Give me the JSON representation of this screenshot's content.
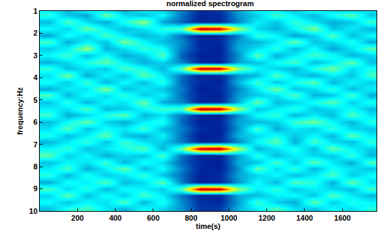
{
  "chart_data": {
    "type": "heatmap",
    "title": "normalized spectrogram",
    "x_label": "time(s)",
    "y_label": "frequency:Hz",
    "x": [
      50,
      150,
      250,
      350,
      450,
      550,
      650,
      750,
      850,
      950,
      1050,
      1150,
      1250,
      1350,
      1450,
      1550,
      1650,
      1750
    ],
    "y": [
      0.9,
      1.2,
      1.5,
      1.8,
      2.1,
      2.4,
      2.7,
      3.0,
      3.3,
      3.6,
      3.9,
      4.2,
      4.5,
      4.8,
      5.1,
      5.4,
      5.7,
      6.0,
      6.3,
      6.6,
      6.9,
      7.2,
      7.5,
      7.8,
      8.1,
      8.4,
      8.7,
      9.0,
      9.3,
      9.6,
      9.9
    ],
    "z": [
      [
        0.35,
        0.28,
        0.42,
        0.31,
        0.25,
        0.38,
        0.3,
        0.22,
        0.1,
        0.12,
        0.26,
        0.4,
        0.33,
        0.29,
        0.45,
        0.32,
        0.27,
        0.36
      ],
      [
        0.41,
        0.3,
        0.26,
        0.48,
        0.33,
        0.29,
        0.37,
        0.2,
        0.08,
        0.09,
        0.24,
        0.31,
        0.44,
        0.35,
        0.28,
        0.39,
        0.46,
        0.3
      ],
      [
        0.29,
        0.45,
        0.33,
        0.27,
        0.4,
        0.51,
        0.26,
        0.18,
        0.07,
        0.08,
        0.22,
        0.36,
        0.3,
        0.42,
        0.34,
        0.27,
        0.31,
        0.43
      ],
      [
        0.38,
        0.32,
        0.47,
        0.36,
        0.29,
        0.34,
        0.41,
        0.45,
        0.95,
        0.92,
        0.55,
        0.33,
        0.28,
        0.37,
        0.49,
        0.3,
        0.35,
        0.28
      ],
      [
        0.26,
        0.39,
        0.31,
        0.44,
        0.35,
        0.28,
        0.33,
        0.19,
        0.06,
        0.07,
        0.21,
        0.42,
        0.37,
        0.26,
        0.31,
        0.45,
        0.29,
        0.38
      ],
      [
        0.44,
        0.27,
        0.36,
        0.3,
        0.49,
        0.37,
        0.29,
        0.23,
        0.08,
        0.09,
        0.25,
        0.28,
        0.35,
        0.47,
        0.3,
        0.33,
        0.4,
        0.27
      ],
      [
        0.31,
        0.36,
        0.52,
        0.28,
        0.33,
        0.42,
        0.38,
        0.21,
        0.09,
        0.07,
        0.27,
        0.34,
        0.41,
        0.29,
        0.38,
        0.26,
        0.34,
        0.46
      ],
      [
        0.37,
        0.43,
        0.29,
        0.39,
        0.27,
        0.31,
        0.45,
        0.17,
        0.07,
        0.08,
        0.23,
        0.46,
        0.27,
        0.36,
        0.43,
        0.39,
        0.28,
        0.32
      ],
      [
        0.28,
        0.33,
        0.4,
        0.46,
        0.36,
        0.27,
        0.32,
        0.22,
        0.08,
        0.06,
        0.26,
        0.3,
        0.38,
        0.44,
        0.29,
        0.35,
        0.47,
        0.29
      ],
      [
        0.42,
        0.29,
        0.35,
        0.31,
        0.44,
        0.39,
        0.28,
        0.46,
        0.94,
        0.93,
        0.52,
        0.37,
        0.32,
        0.28,
        0.41,
        0.48,
        0.33,
        0.39
      ],
      [
        0.33,
        0.48,
        0.27,
        0.37,
        0.3,
        0.46,
        0.35,
        0.2,
        0.07,
        0.08,
        0.24,
        0.29,
        0.45,
        0.33,
        0.27,
        0.36,
        0.3,
        0.44
      ],
      [
        0.39,
        0.31,
        0.43,
        0.28,
        0.38,
        0.29,
        0.41,
        0.18,
        0.09,
        0.07,
        0.28,
        0.43,
        0.3,
        0.39,
        0.46,
        0.28,
        0.37,
        0.31
      ],
      [
        0.27,
        0.36,
        0.34,
        0.5,
        0.29,
        0.35,
        0.3,
        0.21,
        0.06,
        0.09,
        0.22,
        0.35,
        0.48,
        0.3,
        0.33,
        0.42,
        0.29,
        0.36
      ],
      [
        0.45,
        0.28,
        0.39,
        0.33,
        0.42,
        0.31,
        0.36,
        0.19,
        0.08,
        0.07,
        0.25,
        0.31,
        0.34,
        0.45,
        0.28,
        0.3,
        0.44,
        0.27
      ],
      [
        0.3,
        0.41,
        0.28,
        0.37,
        0.34,
        0.47,
        0.27,
        0.22,
        0.07,
        0.08,
        0.27,
        0.47,
        0.29,
        0.32,
        0.39,
        0.46,
        0.31,
        0.4
      ],
      [
        0.36,
        0.34,
        0.45,
        0.29,
        0.31,
        0.38,
        0.43,
        0.44,
        0.96,
        0.94,
        0.54,
        0.3,
        0.36,
        0.41,
        0.3,
        0.33,
        0.38,
        0.29
      ],
      [
        0.43,
        0.27,
        0.32,
        0.41,
        0.46,
        0.28,
        0.34,
        0.2,
        0.08,
        0.06,
        0.23,
        0.38,
        0.42,
        0.28,
        0.35,
        0.29,
        0.45,
        0.34
      ],
      [
        0.29,
        0.38,
        0.47,
        0.32,
        0.27,
        0.36,
        0.4,
        0.18,
        0.07,
        0.08,
        0.26,
        0.29,
        0.31,
        0.43,
        0.48,
        0.37,
        0.28,
        0.41
      ],
      [
        0.34,
        0.45,
        0.3,
        0.38,
        0.35,
        0.43,
        0.29,
        0.22,
        0.09,
        0.07,
        0.24,
        0.44,
        0.27,
        0.35,
        0.31,
        0.42,
        0.33,
        0.3
      ],
      [
        0.4,
        0.29,
        0.36,
        0.46,
        0.3,
        0.27,
        0.37,
        0.19,
        0.06,
        0.08,
        0.28,
        0.33,
        0.39,
        0.3,
        0.37,
        0.28,
        0.46,
        0.35
      ],
      [
        0.28,
        0.35,
        0.42,
        0.3,
        0.43,
        0.34,
        0.31,
        0.21,
        0.08,
        0.09,
        0.22,
        0.37,
        0.46,
        0.27,
        0.44,
        0.33,
        0.29,
        0.42
      ],
      [
        0.37,
        0.42,
        0.29,
        0.35,
        0.39,
        0.45,
        0.28,
        0.47,
        0.93,
        0.95,
        0.56,
        0.28,
        0.34,
        0.4,
        0.29,
        0.47,
        0.36,
        0.31
      ],
      [
        0.46,
        0.31,
        0.38,
        0.27,
        0.33,
        0.3,
        0.44,
        0.2,
        0.07,
        0.08,
        0.25,
        0.41,
        0.29,
        0.36,
        0.33,
        0.3,
        0.42,
        0.28
      ],
      [
        0.3,
        0.37,
        0.34,
        0.43,
        0.28,
        0.39,
        0.33,
        0.18,
        0.09,
        0.06,
        0.27,
        0.3,
        0.44,
        0.31,
        0.46,
        0.35,
        0.27,
        0.45
      ],
      [
        0.35,
        0.44,
        0.27,
        0.36,
        0.47,
        0.29,
        0.38,
        0.22,
        0.08,
        0.07,
        0.23,
        0.46,
        0.33,
        0.42,
        0.28,
        0.39,
        0.34,
        0.3
      ],
      [
        0.41,
        0.28,
        0.4,
        0.31,
        0.34,
        0.42,
        0.3,
        0.19,
        0.07,
        0.09,
        0.26,
        0.32,
        0.37,
        0.29,
        0.35,
        0.44,
        0.31,
        0.38
      ],
      [
        0.27,
        0.39,
        0.35,
        0.45,
        0.29,
        0.33,
        0.46,
        0.21,
        0.06,
        0.08,
        0.24,
        0.38,
        0.28,
        0.45,
        0.41,
        0.27,
        0.47,
        0.33
      ],
      [
        0.44,
        0.33,
        0.41,
        0.28,
        0.38,
        0.36,
        0.31,
        0.45,
        0.95,
        0.93,
        0.53,
        0.35,
        0.42,
        0.3,
        0.36,
        0.33,
        0.29,
        0.44
      ],
      [
        0.32,
        0.46,
        0.29,
        0.39,
        0.31,
        0.44,
        0.35,
        0.2,
        0.08,
        0.07,
        0.27,
        0.29,
        0.36,
        0.38,
        0.3,
        0.45,
        0.35,
        0.28
      ],
      [
        0.38,
        0.3,
        0.37,
        0.33,
        0.45,
        0.28,
        0.4,
        0.23,
        0.1,
        0.09,
        0.25,
        0.43,
        0.31,
        0.27,
        0.47,
        0.31,
        0.4,
        0.36
      ],
      [
        0.29,
        0.4,
        0.44,
        0.35,
        0.27,
        0.39,
        0.32,
        0.24,
        0.11,
        0.12,
        0.28,
        0.36,
        0.45,
        0.34,
        0.29,
        0.38,
        0.33,
        0.41
      ]
    ],
    "zlim": [
      0,
      1
    ],
    "xlim": [
      0,
      1780
    ],
    "ylim": [
      10,
      1
    ],
    "xticks": [
      200,
      400,
      600,
      800,
      1000,
      1200,
      1400,
      1600
    ],
    "yticks": [
      1,
      2,
      3,
      4,
      5,
      6,
      7,
      8,
      9,
      10
    ]
  }
}
